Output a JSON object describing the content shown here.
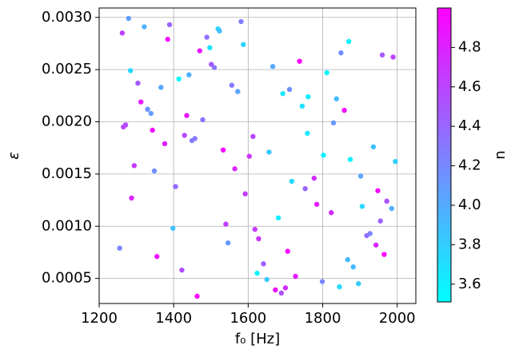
{
  "chart_data": {
    "type": "scatter",
    "x_label": "f₀ [Hz]",
    "y_label": "ε",
    "xlim": [
      1200,
      2050
    ],
    "xticks": [
      1200,
      1400,
      1600,
      1800,
      2000
    ],
    "ylim": [
      0.00026,
      0.00309
    ],
    "yticks": [
      0.0005,
      {
        "value": 0.001,
        "label": "0.0010"
      },
      0.0015,
      {
        "value": 0.002,
        "label": "0.0020"
      },
      0.0025,
      {
        "value": 0.003,
        "label": "0.0030"
      }
    ],
    "grid": true,
    "x": [
      1262,
      1845,
      1533,
      1711,
      1398,
      1960,
      1287,
      1624,
      1478,
      1902,
      1355,
      1759,
      1581,
      1823,
      1441,
      1689,
      1995,
      1312,
      1546,
      1870,
      1405,
      1738,
      1650,
      1271,
      1927,
      1497,
      1784,
      1366,
      1603,
      1882,
      1330,
      1955,
      1519,
      1706,
      1457,
      1811,
      1592,
      1279,
      1673,
      1936,
      1422,
      1761,
      1564,
      1849,
      1343,
      1985,
      1489,
      1628,
      1717,
      1304,
      1896,
      1435,
      1666,
      1540,
      1802,
      1389,
      1948,
      1255,
      1745,
      1613,
      1509,
      1867,
      1376,
      1693,
      1972,
      1463,
      1829,
      1587,
      1294,
      1918,
      1414,
      1777,
      1641,
      1523,
      1858,
      1348,
      1681,
      1989,
      1449,
      1727,
      1572,
      1265,
      1906,
      1384,
      1799,
      1656,
      1501,
      1943,
      1321,
      1753,
      1618,
      1874,
      1470,
      1339,
      1700,
      1556,
      1837,
      1429,
      1965,
      1284
    ],
    "values": [
      0.00285,
      0.00042,
      0.00173,
      0.00231,
      0.00098,
      0.00264,
      0.00127,
      0.00055,
      0.00202,
      0.00148,
      0.00071,
      0.00189,
      0.00296,
      0.00113,
      0.00245,
      0.00036,
      0.00162,
      0.00219,
      0.00084,
      0.00277,
      0.00138,
      0.00258,
      0.00049,
      0.00197,
      0.00093,
      0.00271,
      0.00121,
      0.00233,
      0.00167,
      0.00061,
      0.00212,
      0.00105,
      0.00289,
      0.00076,
      0.00184,
      0.00247,
      0.00131,
      0.00299,
      0.00039,
      0.00176,
      0.00058,
      0.00224,
      0.00155,
      0.00266,
      0.00192,
      0.00117,
      0.00281,
      0.00088,
      0.00143,
      0.00237,
      0.00045,
      0.00206,
      0.00253,
      0.00102,
      0.00168,
      0.00293,
      0.00134,
      0.00079,
      0.00215,
      0.00186,
      0.00252,
      0.00068,
      0.00179,
      0.00227,
      0.00124,
      0.00033,
      0.00199,
      0.00274,
      0.00158,
      0.00091,
      0.00241,
      0.00146,
      0.00064,
      0.00287,
      0.00211,
      0.00153,
      0.00108,
      0.00262,
      0.00182,
      0.00052,
      0.00229,
      0.00195,
      0.00119,
      0.00279,
      0.00047,
      0.00171,
      0.00255,
      0.00082,
      0.00291,
      0.00136,
      0.00097,
      0.00164,
      0.00268,
      0.00208,
      0.00041,
      0.00235,
      0.00222,
      0.00187,
      0.00073,
      0.00249
    ],
    "color_values": [
      4.62,
      3.71,
      4.95,
      4.18,
      3.88,
      4.47,
      4.79,
      3.56,
      4.33,
      4.05,
      4.91,
      3.64,
      4.26,
      4.74,
      3.97,
      4.52,
      3.79,
      4.86,
      4.11,
      3.59,
      4.38,
      4.99,
      3.83,
      4.57,
      4.22,
      3.68,
      4.84,
      4.01,
      4.69,
      3.92,
      4.14,
      4.43,
      3.75,
      4.97,
      4.29,
      3.54,
      4.66,
      4.08,
      4.89,
      3.86,
      4.55,
      3.61,
      4.76,
      4.19,
      4.93,
      3.99,
      4.35,
      4.71,
      3.73,
      4.48,
      3.81,
      4.87,
      4.02,
      4.64,
      3.57,
      4.41,
      4.96,
      4.24,
      3.69,
      4.59,
      4.31,
      3.93,
      4.82,
      3.66,
      4.53,
      4.98,
      4.12,
      3.77,
      4.68,
      4.36,
      3.52,
      4.72,
      4.45,
      3.89,
      4.92,
      4.16,
      3.63,
      4.61,
      4.27,
      4.83,
      4.04,
      4.58,
      3.74,
      4.94,
      4.21,
      3.85,
      4.49,
      4.78,
      3.96,
      4.39,
      4.67,
      3.58,
      4.88,
      4.09,
      4.73,
      4.28,
      3.91,
      4.56,
      4.99,
      3.72
    ],
    "colorbar": {
      "label": "n",
      "lim": [
        3.51,
        5.0
      ],
      "ticks": [
        3.6,
        3.8,
        {
          "value": 4.0,
          "label": "4.0"
        },
        4.2,
        4.4,
        4.6,
        4.8
      ],
      "colormap": [
        "#00ffff",
        "#ff00ff"
      ]
    }
  }
}
